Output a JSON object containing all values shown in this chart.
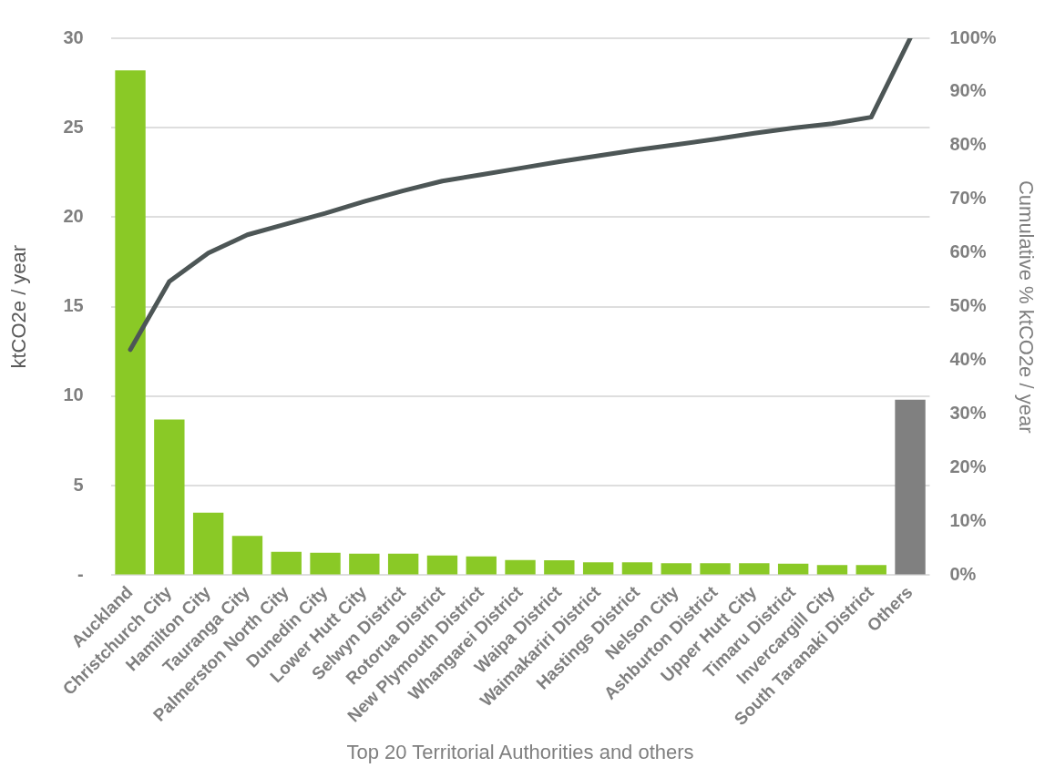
{
  "chart_data": {
    "type": "bar",
    "xlabel": "Top 20 Territorial Authorities and others",
    "ylabel": "ktCO2e / year",
    "y2label": "Cumulative % ktCO2e / year",
    "categories": [
      "Auckland",
      "Christchurch City",
      "Hamilton City",
      "Tauranga City",
      "Palmerston North City",
      "Dunedin City",
      "Lower Hutt City",
      "Selwyn District",
      "Rotorua District",
      "New Plymouth District",
      "Whangarei District",
      "Waipa District",
      "Waimakariri District",
      "Hastings District",
      "Nelson City",
      "Ashburton District",
      "Upper Hutt City",
      "Timaru District",
      "Invercargill City",
      "South Taranaki District",
      "Others"
    ],
    "series": [
      {
        "colors": [
          "#8ac926",
          "#8ac926",
          "#8ac926",
          "#8ac926",
          "#8ac926",
          "#8ac926",
          "#8ac926",
          "#8ac926",
          "#8ac926",
          "#8ac926",
          "#8ac926",
          "#8ac926",
          "#8ac926",
          "#8ac926",
          "#8ac926",
          "#8ac926",
          "#8ac926",
          "#8ac926",
          "#8ac926",
          "#8ac926",
          "#808080"
        ],
        "values": [
          28.2,
          8.7,
          3.5,
          2.2,
          1.3,
          1.25,
          1.2,
          1.2,
          1.1,
          1.05,
          0.85,
          0.83,
          0.72,
          0.72,
          0.67,
          0.67,
          0.67,
          0.65,
          0.57,
          0.57,
          9.8
        ]
      },
      {
        "type": "line",
        "axis": "y2",
        "color": "#4d5656",
        "values": [
          42,
          54.7,
          60,
          63.4,
          65.4,
          67.4,
          69.6,
          71.6,
          73.4,
          74.6,
          75.8,
          77,
          78.1,
          79.2,
          80.2,
          81.2,
          82.3,
          83.3,
          84.1,
          85.3,
          100
        ]
      }
    ],
    "ylim": [
      0,
      30
    ],
    "yticks": [
      {
        "value": 0,
        "label": "-"
      },
      5,
      10,
      15,
      20,
      25,
      30
    ],
    "y2lim": [
      0,
      100
    ],
    "y2ticks": [
      {
        "value": 0,
        "label": "0%"
      },
      {
        "value": 10,
        "label": "10%"
      },
      {
        "value": 20,
        "label": "20%"
      },
      {
        "value": 30,
        "label": "30%"
      },
      {
        "value": 40,
        "label": "40%"
      },
      {
        "value": 50,
        "label": "50%"
      },
      {
        "value": 60,
        "label": "60%"
      },
      {
        "value": 70,
        "label": "70%"
      },
      {
        "value": 80,
        "label": "80%"
      },
      {
        "value": 90,
        "label": "90%"
      },
      {
        "value": 100,
        "label": "100%"
      }
    ],
    "grid": "y",
    "legend": false,
    "marker": "none"
  }
}
